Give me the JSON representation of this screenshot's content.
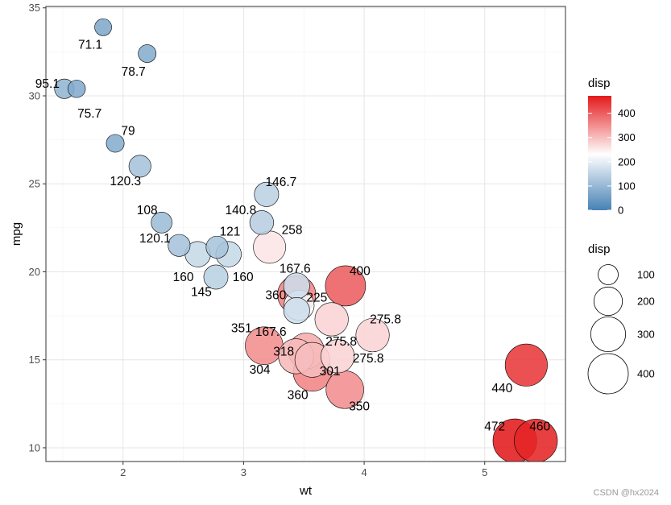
{
  "chart_data": {
    "type": "scatter",
    "xlabel": "wt",
    "ylabel": "mpg",
    "xlim": [
      1.36,
      5.67
    ],
    "ylim": [
      9.22,
      35.08
    ],
    "x_ticks": [
      "2",
      "3",
      "4",
      "5"
    ],
    "y_ticks": [
      "10",
      "15",
      "20",
      "25",
      "30",
      "35"
    ],
    "grid": true,
    "color_legend": {
      "title": "disp",
      "range": [
        0,
        472
      ],
      "low_color": "#4682B4",
      "mid_color": "#FFFFFF",
      "high_color": "#E41A1C",
      "midpoint": 230.7,
      "ticks": [
        "0",
        "100",
        "200",
        "300",
        "400"
      ]
    },
    "size_legend": {
      "title": "disp",
      "labels": [
        "100",
        "200",
        "300",
        "400"
      ]
    },
    "points": [
      {
        "wt": 2.62,
        "mpg": 21.0,
        "disp": 160.0,
        "label": "160"
      },
      {
        "wt": 2.875,
        "mpg": 21.0,
        "disp": 160.0,
        "label": "160"
      },
      {
        "wt": 2.32,
        "mpg": 22.8,
        "disp": 108.0,
        "label": "108"
      },
      {
        "wt": 3.215,
        "mpg": 21.4,
        "disp": 258.0,
        "label": "258"
      },
      {
        "wt": 3.44,
        "mpg": 18.7,
        "disp": 360.0,
        "label": "360"
      },
      {
        "wt": 3.46,
        "mpg": 18.1,
        "disp": 225.0,
        "label": "225"
      },
      {
        "wt": 3.57,
        "mpg": 14.3,
        "disp": 360.0,
        "label": "360"
      },
      {
        "wt": 3.19,
        "mpg": 24.4,
        "disp": 146.7,
        "label": "146.7"
      },
      {
        "wt": 3.15,
        "mpg": 22.8,
        "disp": 140.8,
        "label": "140.8"
      },
      {
        "wt": 3.44,
        "mpg": 19.2,
        "disp": 167.6,
        "label": "167.6"
      },
      {
        "wt": 3.44,
        "mpg": 17.8,
        "disp": 167.6,
        "label": "167.6"
      },
      {
        "wt": 4.07,
        "mpg": 16.4,
        "disp": 275.8,
        "label": "275.8"
      },
      {
        "wt": 3.73,
        "mpg": 17.3,
        "disp": 275.8,
        "label": "275.8"
      },
      {
        "wt": 3.78,
        "mpg": 15.2,
        "disp": 275.8,
        "label": "275.8"
      },
      {
        "wt": 5.25,
        "mpg": 10.4,
        "disp": 472.0,
        "label": "472"
      },
      {
        "wt": 5.424,
        "mpg": 10.4,
        "disp": 460.0,
        "label": "460"
      },
      {
        "wt": 5.345,
        "mpg": 14.7,
        "disp": 440.0,
        "label": "440"
      },
      {
        "wt": 2.2,
        "mpg": 32.4,
        "disp": 78.7,
        "label": "78.7"
      },
      {
        "wt": 1.615,
        "mpg": 30.4,
        "disp": 75.7,
        "label": "75.7"
      },
      {
        "wt": 1.835,
        "mpg": 33.9,
        "disp": 71.1,
        "label": "71.1"
      },
      {
        "wt": 2.465,
        "mpg": 21.5,
        "disp": 120.1,
        "label": "120.1"
      },
      {
        "wt": 3.52,
        "mpg": 15.5,
        "disp": 318.0,
        "label": "318"
      },
      {
        "wt": 3.435,
        "mpg": 15.2,
        "disp": 304.0,
        "label": "304"
      },
      {
        "wt": 3.84,
        "mpg": 13.3,
        "disp": 350.0,
        "label": "350"
      },
      {
        "wt": 3.845,
        "mpg": 19.2,
        "disp": 400.0,
        "label": "400"
      },
      {
        "wt": 1.935,
        "mpg": 27.3,
        "disp": 79.0,
        "label": "79"
      },
      {
        "wt": 2.14,
        "mpg": 26.0,
        "disp": 120.3,
        "label": "120.3"
      },
      {
        "wt": 1.513,
        "mpg": 30.4,
        "disp": 95.1,
        "label": "95.1"
      },
      {
        "wt": 3.17,
        "mpg": 15.8,
        "disp": 351.0,
        "label": "351"
      },
      {
        "wt": 2.77,
        "mpg": 19.7,
        "disp": 145.0,
        "label": "145"
      },
      {
        "wt": 3.57,
        "mpg": 15.0,
        "disp": 301.0,
        "label": "301"
      },
      {
        "wt": 2.78,
        "mpg": 21.4,
        "disp": 121.0,
        "label": "121"
      }
    ]
  },
  "watermark": "CSDN @hx2024"
}
